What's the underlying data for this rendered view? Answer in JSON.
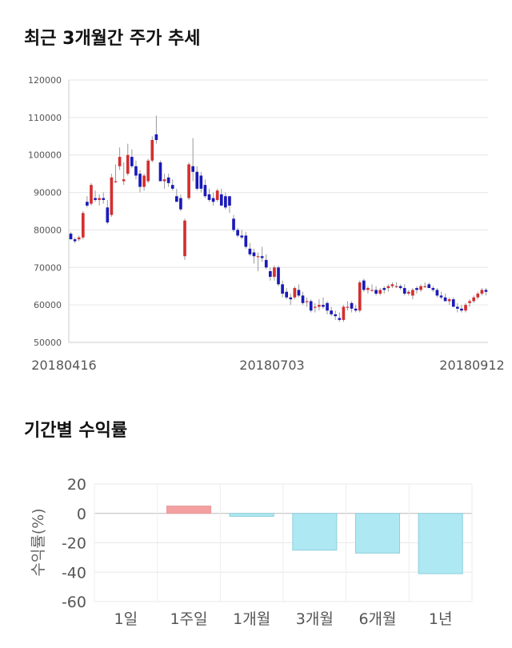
{
  "sections": {
    "price_title": "최근 3개월간 주가 추세",
    "return_title": "기간별 수익률"
  },
  "chart_data": [
    {
      "type": "candlestick",
      "title": "최근 3개월간 주가 추세",
      "ylim": [
        50000,
        120000
      ],
      "y_ticks": [
        50000,
        60000,
        70000,
        80000,
        90000,
        100000,
        110000,
        120000
      ],
      "x_tick_labels": [
        "20180416",
        "20180703",
        "20180912"
      ],
      "grid": true,
      "up_color": "#d32f2f",
      "down_color": "#1a1ab8",
      "candles": [
        [
          79000,
          79500,
          78000,
          77500
        ],
        [
          77500,
          78000,
          76500,
          77000
        ],
        [
          77500,
          78500,
          77000,
          78000
        ],
        [
          78000,
          85000,
          77500,
          84500
        ],
        [
          87500,
          89000,
          86000,
          86500
        ],
        [
          87000,
          92500,
          86500,
          92000
        ],
        [
          88500,
          90500,
          87500,
          88000
        ],
        [
          88000,
          89500,
          86500,
          88500
        ],
        [
          88500,
          90000,
          87000,
          88000
        ],
        [
          86000,
          88000,
          81500,
          82000
        ],
        [
          84000,
          95000,
          83500,
          94000
        ],
        [
          93000,
          97500,
          92500,
          93000
        ],
        [
          97000,
          102000,
          96000,
          99500
        ],
        [
          93000,
          98000,
          92000,
          93500
        ],
        [
          95000,
          103000,
          94500,
          100000
        ],
        [
          99500,
          101500,
          96500,
          97000
        ],
        [
          97000,
          98500,
          93500,
          94500
        ],
        [
          95000,
          96000,
          90000,
          91500
        ],
        [
          91500,
          95000,
          90500,
          94500
        ],
        [
          93000,
          99000,
          92500,
          98500
        ],
        [
          98500,
          105000,
          98000,
          104000
        ],
        [
          105500,
          110500,
          103000,
          104000
        ],
        [
          98000,
          98500,
          93500,
          93000
        ],
        [
          93000,
          95000,
          91000,
          93500
        ],
        [
          94000,
          95000,
          91500,
          92500
        ],
        [
          92000,
          93500,
          90500,
          91000
        ],
        [
          89000,
          91000,
          87500,
          87500
        ],
        [
          88500,
          89500,
          85000,
          85500
        ],
        [
          73000,
          83000,
          72000,
          82500
        ],
        [
          88500,
          98000,
          88000,
          97500
        ],
        [
          97000,
          104500,
          93000,
          95500
        ],
        [
          95500,
          97000,
          90500,
          91000
        ],
        [
          94500,
          95500,
          90000,
          91000
        ],
        [
          92000,
          93500,
          88500,
          89000
        ],
        [
          89500,
          91000,
          87500,
          88000
        ],
        [
          88500,
          90000,
          86500,
          87500
        ],
        [
          88000,
          91000,
          87500,
          90500
        ],
        [
          89500,
          91000,
          86500,
          86500
        ],
        [
          89000,
          90000,
          85500,
          86000
        ],
        [
          89000,
          89000,
          84500,
          86500
        ],
        [
          83000,
          84000,
          79500,
          80000
        ],
        [
          80000,
          80500,
          78000,
          78500
        ],
        [
          78500,
          80000,
          77500,
          78000
        ],
        [
          78500,
          79500,
          75000,
          75500
        ],
        [
          75000,
          76500,
          73000,
          73500
        ],
        [
          74000,
          75000,
          71000,
          73000
        ],
        [
          73000,
          74000,
          69000,
          73000
        ],
        [
          73000,
          75500,
          71500,
          72500
        ],
        [
          72000,
          73500,
          69500,
          70000
        ],
        [
          69000,
          70000,
          66500,
          67500
        ],
        [
          67500,
          70500,
          66500,
          70000
        ],
        [
          70000,
          70500,
          65000,
          65500
        ],
        [
          65500,
          66500,
          62000,
          63000
        ],
        [
          63500,
          64500,
          61500,
          62000
        ],
        [
          62000,
          63000,
          60000,
          61500
        ],
        [
          62000,
          65000,
          61500,
          64500
        ],
        [
          64000,
          65500,
          62000,
          62500
        ],
        [
          62500,
          63500,
          60000,
          60500
        ],
        [
          61000,
          62000,
          59500,
          61000
        ],
        [
          61000,
          61500,
          58000,
          58500
        ],
        [
          59500,
          60500,
          58000,
          59500
        ],
        [
          59500,
          61500,
          58500,
          60000
        ],
        [
          60000,
          62000,
          59000,
          59500
        ],
        [
          60500,
          61000,
          57500,
          58500
        ],
        [
          58500,
          59500,
          57000,
          57500
        ],
        [
          57500,
          58500,
          56000,
          57000
        ],
        [
          56500,
          58000,
          55500,
          56000
        ],
        [
          56000,
          60000,
          55500,
          59500
        ],
        [
          59500,
          61000,
          58500,
          59500
        ],
        [
          60500,
          61000,
          58000,
          59000
        ],
        [
          59000,
          60000,
          58000,
          58500
        ],
        [
          58500,
          66500,
          58000,
          66000
        ],
        [
          66500,
          67000,
          63500,
          64000
        ],
        [
          64000,
          65000,
          63000,
          64500
        ],
        [
          64000,
          65500,
          63500,
          64000
        ],
        [
          64000,
          65000,
          62500,
          63000
        ],
        [
          63000,
          64500,
          62500,
          64000
        ],
        [
          64500,
          65000,
          63000,
          64000
        ],
        [
          64500,
          65500,
          63500,
          65000
        ],
        [
          65000,
          66000,
          64500,
          65500
        ],
        [
          65000,
          66000,
          64500,
          65000
        ],
        [
          65000,
          65500,
          64000,
          64500
        ],
        [
          64500,
          65500,
          62500,
          63000
        ],
        [
          63000,
          64000,
          62500,
          63500
        ],
        [
          62500,
          64500,
          61500,
          64000
        ],
        [
          64500,
          65000,
          63000,
          64000
        ],
        [
          64000,
          65500,
          63500,
          65000
        ],
        [
          65000,
          66000,
          64500,
          65000
        ],
        [
          65500,
          66000,
          64500,
          64500
        ],
        [
          64500,
          65000,
          63500,
          64000
        ],
        [
          64000,
          64500,
          62000,
          62500
        ],
        [
          62500,
          63500,
          61500,
          62000
        ],
        [
          62000,
          63000,
          61000,
          61000
        ],
        [
          61000,
          62000,
          60000,
          61500
        ],
        [
          61500,
          62000,
          59500,
          59500
        ],
        [
          59500,
          60500,
          58000,
          59000
        ],
        [
          59000,
          60000,
          58000,
          58500
        ],
        [
          58500,
          60500,
          58000,
          60000
        ],
        [
          60500,
          61500,
          59500,
          61000
        ],
        [
          61000,
          62500,
          60500,
          62000
        ],
        [
          62000,
          63500,
          61500,
          63000
        ],
        [
          63000,
          64500,
          62500,
          64000
        ],
        [
          64000,
          64500,
          62500,
          63500
        ]
      ]
    },
    {
      "type": "bar",
      "title": "기간별 수익률",
      "ylabel": "수익률(%)",
      "categories": [
        "1일",
        "1주일",
        "1개월",
        "3개월",
        "6개월",
        "1년"
      ],
      "values": [
        0,
        5,
        -2,
        -25,
        -27,
        -41
      ],
      "ylim": [
        -60,
        20
      ],
      "y_ticks": [
        20,
        0,
        -20,
        -40,
        -60
      ],
      "positive_color": "#f4a0a0",
      "negative_color": "#aee8f2",
      "grid": true
    }
  ]
}
